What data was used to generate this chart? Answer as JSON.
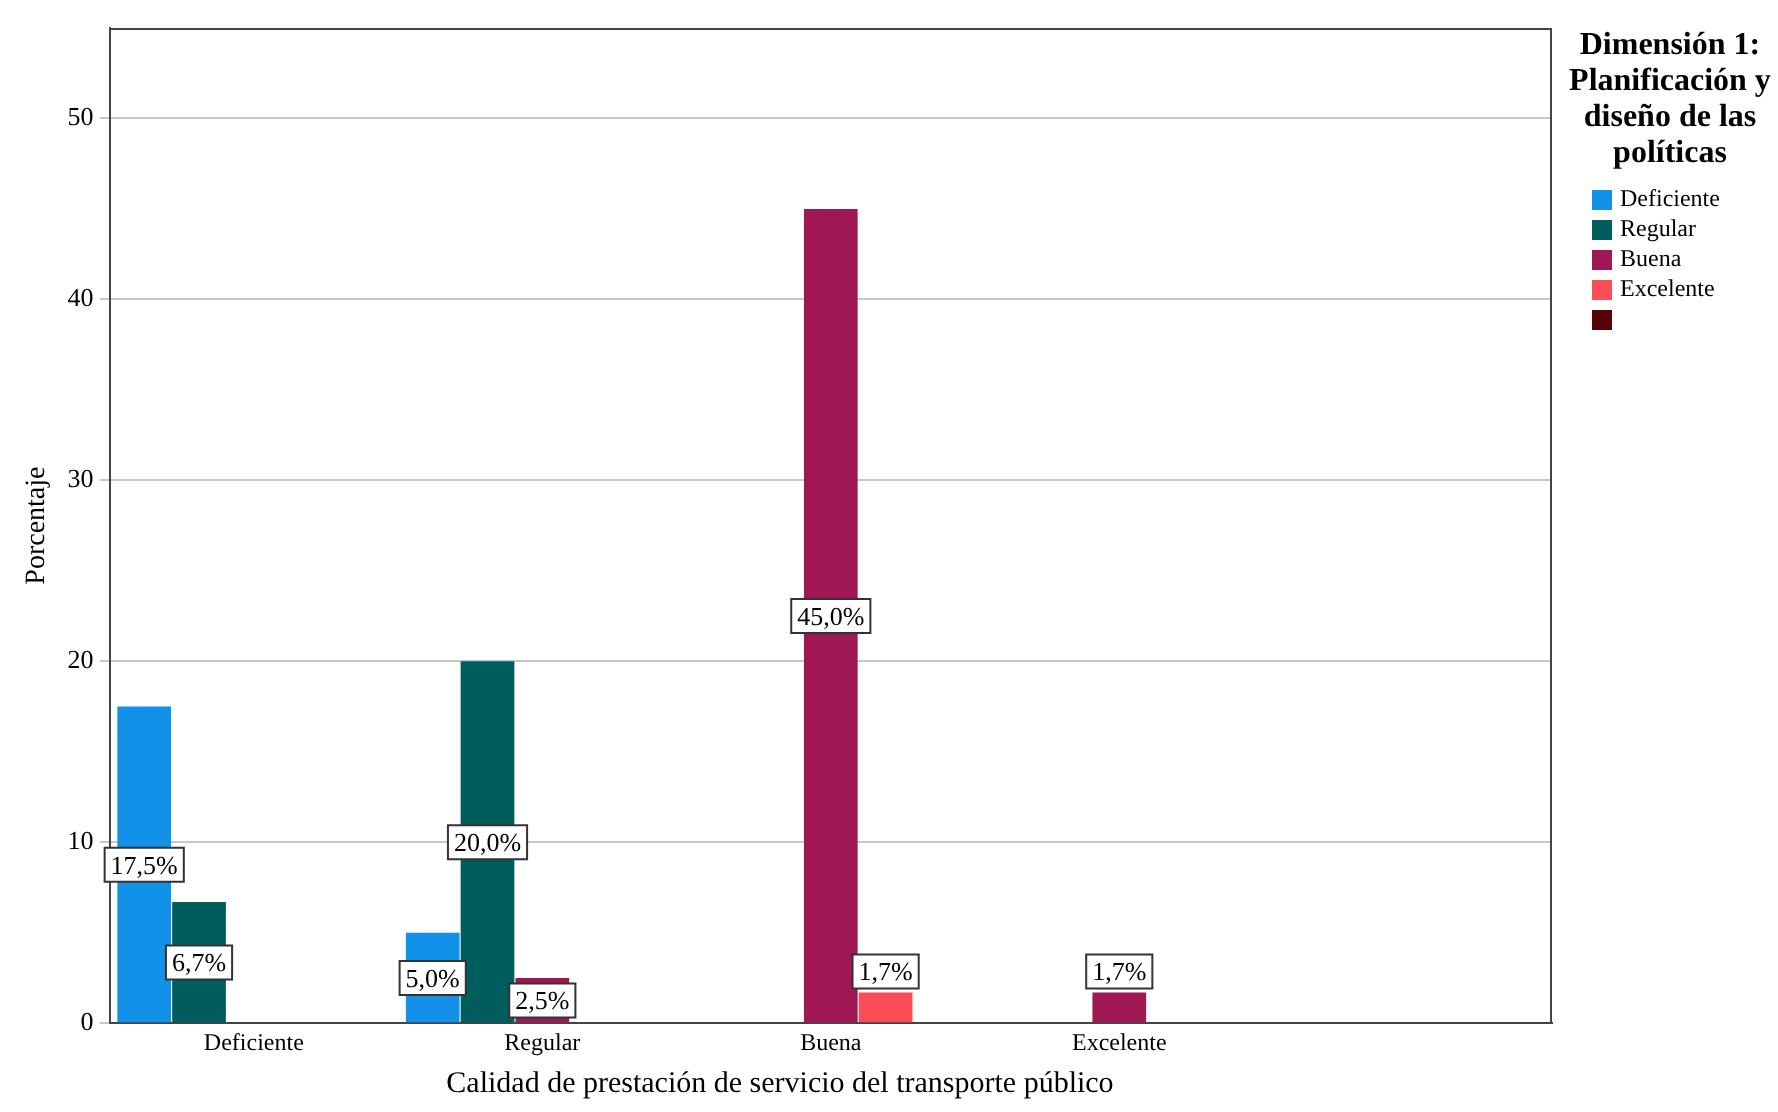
{
  "chart_data": {
    "type": "bar",
    "xlabel": "Calidad de prestación de servicio del transporte público",
    "ylabel": "Porcentaje",
    "legend_title": "Dimensión 1: Planificación y diseño de las políticas",
    "categories": [
      "Deficiente",
      "Regular",
      "Buena",
      "Excelente",
      null
    ],
    "series": [
      {
        "name": "Deficiente",
        "color": "#1192e8",
        "values": [
          17.5,
          5.0,
          null,
          null,
          null
        ],
        "value_labels": [
          "17,5%",
          "5,0%",
          null,
          null,
          null
        ]
      },
      {
        "name": "Regular",
        "color": "#005d5d",
        "values": [
          6.7,
          20.0,
          null,
          null,
          null
        ],
        "value_labels": [
          "6,7%",
          "20,0%",
          null,
          null,
          null
        ]
      },
      {
        "name": "Buena",
        "color": "#9f1853",
        "values": [
          null,
          2.5,
          45.0,
          1.7,
          null
        ],
        "value_labels": [
          null,
          "2,5%",
          "45,0%",
          "1,7%",
          null
        ]
      },
      {
        "name": "Excelente",
        "color": "#fa4d56",
        "values": [
          null,
          null,
          1.7,
          null,
          null
        ],
        "value_labels": [
          null,
          null,
          "1,7%",
          null,
          null
        ]
      },
      {
        "color": "#570408",
        "values": [
          null,
          null,
          null,
          null,
          null
        ]
      }
    ],
    "ylim": [
      0,
      55
    ],
    "yticks": [
      0,
      10,
      20,
      30,
      40,
      50
    ],
    "grid": "y",
    "legend": "right"
  }
}
